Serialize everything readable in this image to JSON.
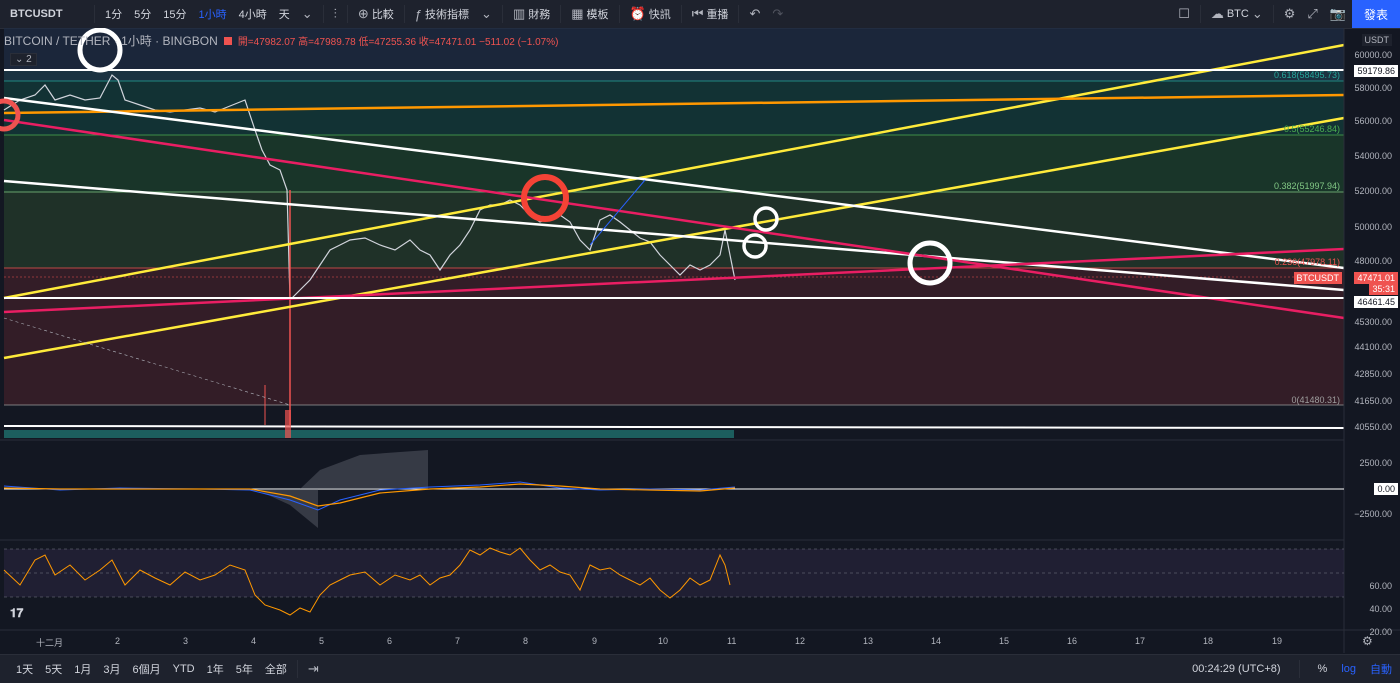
{
  "toolbar": {
    "symbol": "BTCUSDT",
    "intervals": [
      "1分",
      "5分",
      "15分",
      "1小時",
      "4小時",
      "天"
    ],
    "active_interval": "1小時",
    "compare": "比較",
    "indicators": "技術指標",
    "financials": "財務",
    "templates": "模板",
    "alerts": "快訊",
    "replay": "重播",
    "currency": "BTC",
    "publish": "發表"
  },
  "legend": {
    "title": "BITCOIN / TETHER · 1小時 · BINGBON",
    "ohlc": "開=47982.07 高=47989.78 低=47255.36 收=47471.01 −511.02 (−1.07%)",
    "indicator_count": "2"
  },
  "yaxis": {
    "currency": "USDT",
    "ticks": [
      "60000.00",
      "58000.00",
      "56000.00",
      "54000.00",
      "52000.00",
      "50000.00",
      "48000.00",
      "45300.00",
      "44100.00",
      "42850.00",
      "41650.00",
      "40550.00"
    ],
    "macd_ticks": [
      "2500.00",
      "0.00",
      "−2500.00"
    ],
    "rsi_ticks": [
      "60.00",
      "40.00",
      "20.00"
    ],
    "price_tags": {
      "top_line": "59179.86",
      "symbol": "BTCUSDT",
      "last": "47471.01",
      "countdown": "35:31",
      "low_line": "46461.45",
      "macd_zero": "0.00"
    }
  },
  "fib": [
    {
      "label": "0.618(58495.73)"
    },
    {
      "label": "0.5(55246.84)"
    },
    {
      "label": "0.382(51997.94)"
    },
    {
      "label": "0.236(47978.11)"
    },
    {
      "label": "0(41480.31)"
    }
  ],
  "xaxis": [
    "十二月",
    "2",
    "3",
    "4",
    "5",
    "6",
    "7",
    "8",
    "9",
    "10",
    "11",
    "12",
    "13",
    "14",
    "15",
    "16",
    "17",
    "18",
    "19"
  ],
  "bottombar": {
    "ranges": [
      "1天",
      "5天",
      "1月",
      "3月",
      "6個月",
      "YTD",
      "1年",
      "5年",
      "全部"
    ],
    "time": "00:24:29 (UTC+8)",
    "percent": "%",
    "log": "log",
    "auto": "自動"
  },
  "colors": {
    "accent": "#2962ff",
    "up": "#26a69a",
    "down": "#ef5350",
    "yellow_line": "#ffeb3b",
    "orange_line": "#ff9800",
    "pink_line": "#e91e63",
    "white_line": "#ffffff"
  }
}
